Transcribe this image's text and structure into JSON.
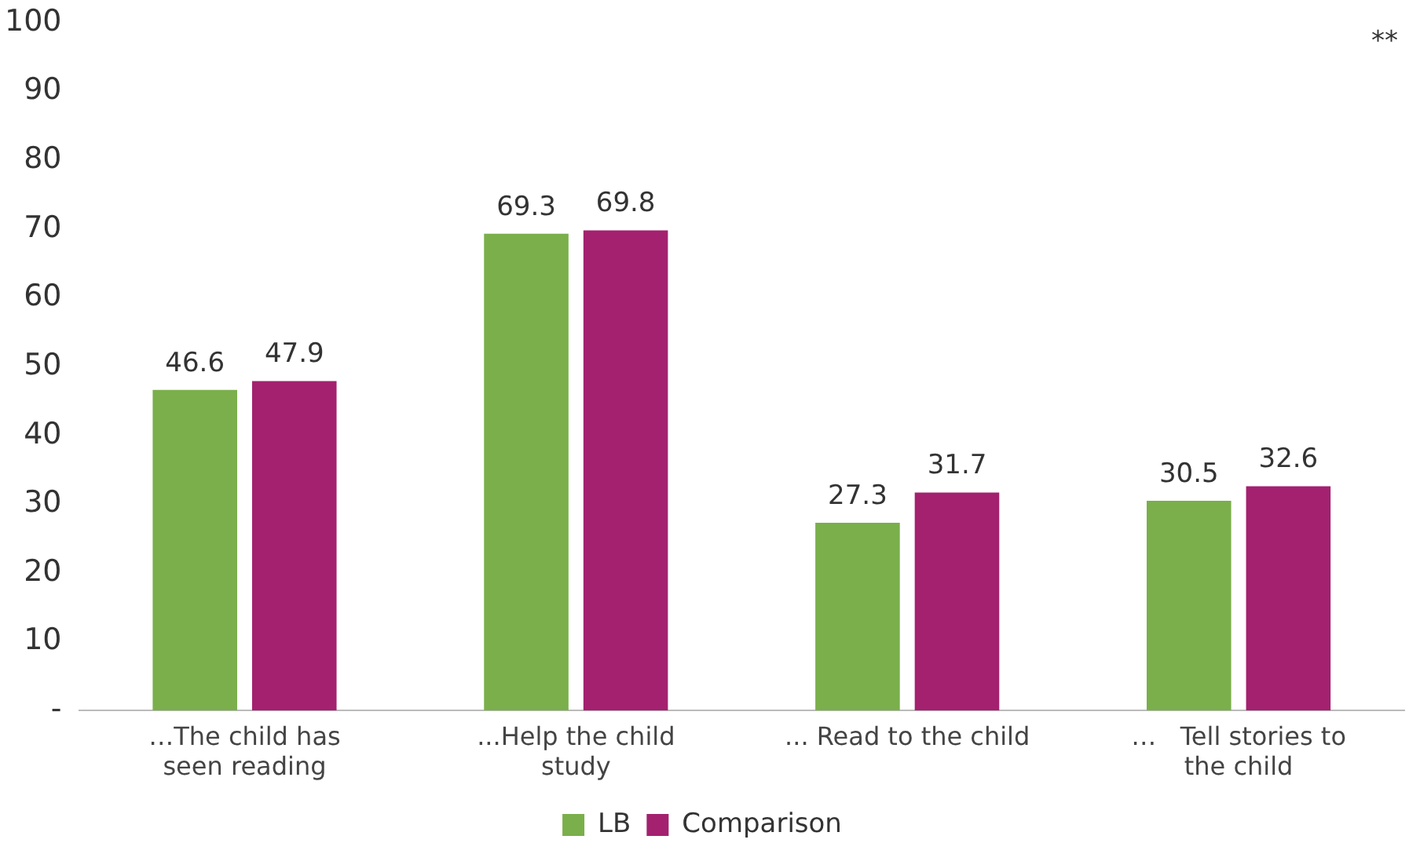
{
  "chart_data": {
    "type": "bar",
    "categories": [
      "…The child has seen reading",
      "...Help the child study",
      "... Read to the child",
      "…   Tell stories to the child"
    ],
    "series": [
      {
        "name": "LB",
        "color": "#7aaf4b",
        "values": [
          46.6,
          69.3,
          27.3,
          30.5
        ]
      },
      {
        "name": "Comparison",
        "color": "#a3216f",
        "values": [
          47.9,
          69.8,
          31.7,
          32.6
        ]
      }
    ],
    "ylim": [
      0,
      100
    ],
    "yticks": [
      {
        "value": 0,
        "label": "-"
      },
      10,
      20,
      30,
      40,
      50,
      60,
      70,
      80,
      90,
      100
    ],
    "grid": false,
    "legend": "bottom",
    "data_labels": true,
    "annotations": [
      "**"
    ]
  }
}
